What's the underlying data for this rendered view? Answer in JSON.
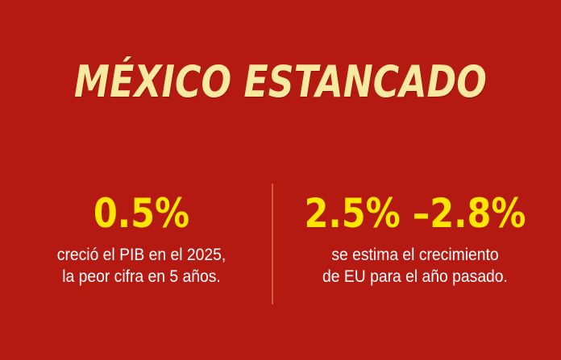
{
  "headline": "MÉXICO ESTANCADO",
  "stats": [
    {
      "value": "0.5%",
      "caption_lines": [
        "creció el PIB en el 2025,",
        "la peor cifra en 5 años."
      ]
    },
    {
      "value": "2.5% –2.8%",
      "caption_lines": [
        "se estima el crecimiento",
        "de EU para el año pasado."
      ]
    }
  ],
  "colors": {
    "background": "#b51a12",
    "headline": "#f7e9a0",
    "stat_value": "#ffe600",
    "caption": "#ffffff",
    "divider": "#d9664e"
  }
}
